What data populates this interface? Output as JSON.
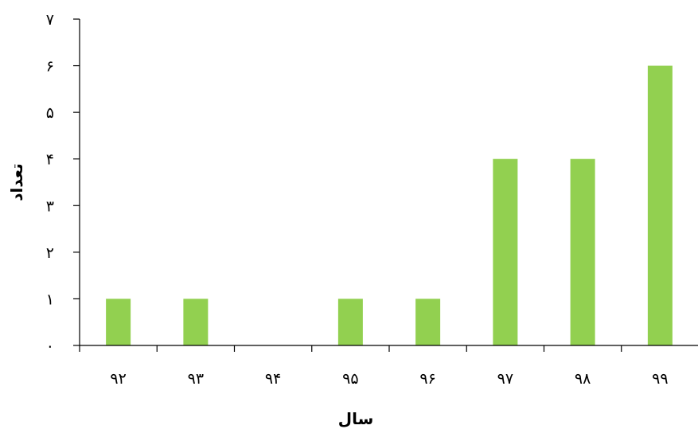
{
  "chart_data": {
    "type": "bar",
    "title": "",
    "xlabel": "سال",
    "ylabel": "تعداد",
    "categories": [
      "۹۲",
      "۹۳",
      "۹۴",
      "۹۵",
      "۹۶",
      "۹۷",
      "۹۸",
      "۹۹"
    ],
    "values": [
      1,
      1,
      0,
      1,
      1,
      4,
      4,
      6
    ],
    "ylim": [
      0,
      7
    ],
    "y_ticks": [
      0,
      1,
      2,
      3,
      4,
      5,
      6,
      7
    ],
    "y_tick_labels": [
      "۰",
      "۱",
      "۲",
      "۳",
      "۴",
      "۵",
      "۶",
      "۷"
    ],
    "grid": false,
    "legend": "none",
    "bar_color": "#92d050"
  }
}
